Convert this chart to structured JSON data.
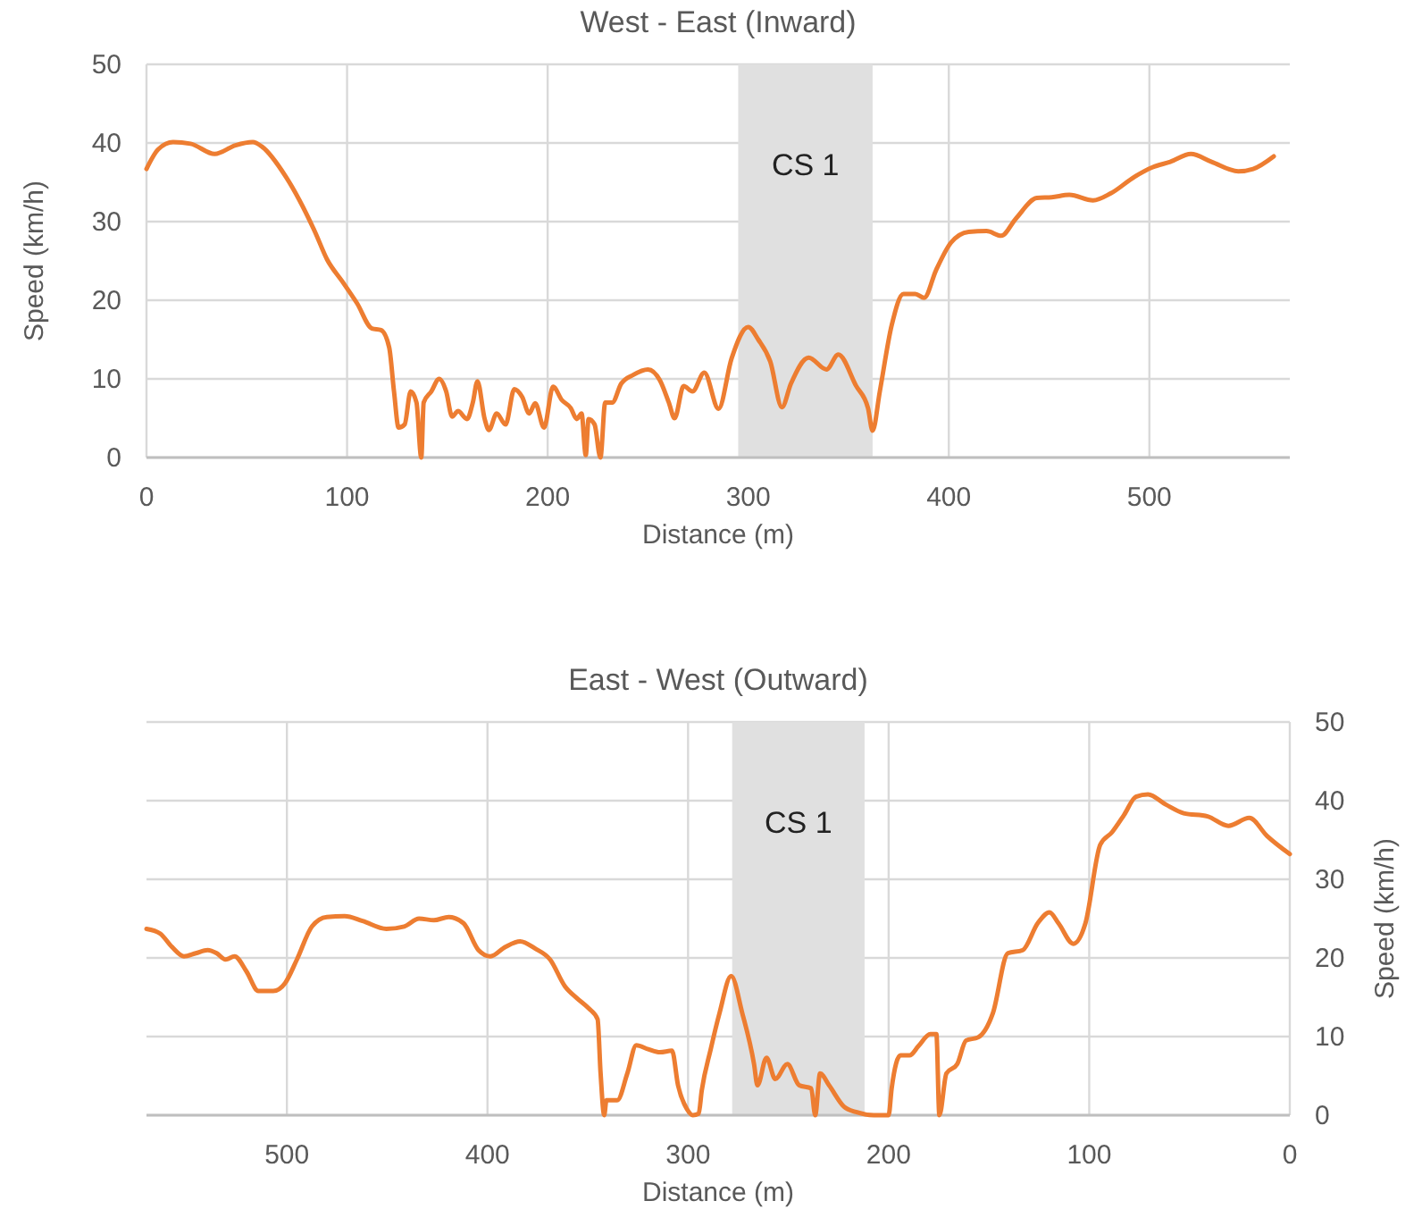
{
  "chart_data": [
    {
      "type": "line",
      "title": "West - East (Inward)",
      "xlabel": "Distance (m)",
      "ylabel": "Speed (km/h)",
      "xlim": [
        0,
        570
      ],
      "xticks": [
        0,
        100,
        200,
        300,
        400,
        500
      ],
      "ylim": [
        0,
        50
      ],
      "yticks": [
        0,
        10,
        20,
        30,
        40,
        50
      ],
      "grid": true,
      "bands": [
        {
          "axis": "x",
          "from": 295,
          "to": 362,
          "label": "CS 1",
          "color": "#e0e0e0"
        }
      ],
      "series": [
        {
          "color": "#ed7d31",
          "x": [
            0,
            5.9,
            13.3,
            22,
            34,
            44.4,
            53,
            57.7,
            69.5,
            84,
            90,
            97.6,
            105,
            112.4,
            116.9,
            121,
            123.4,
            125.7,
            128.7,
            131.7,
            134.6,
            137,
            138.2,
            142,
            145.9,
            149.4,
            152.4,
            155.3,
            159.8,
            162.7,
            165,
            168.6,
            170.7,
            174.6,
            179,
            183.4,
            187.3,
            190.8,
            193.8,
            198.2,
            202.7,
            207.1,
            211.5,
            214.5,
            216.9,
            219,
            220.4,
            223.4,
            226.3,
            228.7,
            232.2,
            236.7,
            242.6,
            250,
            256,
            260.4,
            263.3,
            267.8,
            272.2,
            278.1,
            285.2,
            291.7,
            300,
            305,
            311,
            316.8,
            321.3,
            330.1,
            339,
            344.9,
            353.8,
            359.7,
            362,
            365.6,
            371.5,
            377.4,
            383.3,
            387.7,
            393.6,
            401,
            409.9,
            418.8,
            426.1,
            433.5,
            443.9,
            451.3,
            460.1,
            471.9,
            480.8,
            492.6,
            501.5,
            510.4,
            520.7,
            531,
            544.3,
            551.7,
            562
          ],
          "values": [
            36.7,
            39.2,
            40.1,
            39.9,
            38.6,
            39.7,
            40.1,
            39.5,
            35.7,
            28.7,
            25.2,
            22.4,
            19.6,
            16.4,
            16.2,
            14,
            8.4,
            3.8,
            4.2,
            8.4,
            7,
            0,
            7,
            8.4,
            10,
            8.4,
            5.2,
            5.9,
            4.9,
            7,
            9.7,
            4.9,
            3.5,
            5.6,
            4.2,
            8.7,
            7.7,
            5.6,
            6.9,
            3.8,
            9,
            7.3,
            6.3,
            4.9,
            5.6,
            0.3,
            4.9,
            4.2,
            0,
            7,
            7,
            9.4,
            10.5,
            11.2,
            9.8,
            7,
            5,
            9.1,
            8.4,
            10.8,
            6.2,
            12.6,
            16.6,
            15,
            12.2,
            6.4,
            9.4,
            12.7,
            11.2,
            13.1,
            9.1,
            6.3,
            3.4,
            8.4,
            16.8,
            20.8,
            20.8,
            20.3,
            23.8,
            27.3,
            28.7,
            28.8,
            28.2,
            30.4,
            33,
            33.1,
            33.4,
            32.7,
            33.6,
            35.7,
            36.9,
            37.6,
            38.6,
            37.6,
            36.4,
            36.7,
            38.3
          ]
        }
      ]
    },
    {
      "type": "line",
      "title": "East - West (Outward)",
      "xlabel": "Distance (m)",
      "y2label": "Speed (km/h)",
      "xlim": [
        570,
        0
      ],
      "xticks": [
        500,
        400,
        300,
        200,
        100,
        0
      ],
      "y2lim": [
        0,
        50
      ],
      "y2ticks": [
        0,
        10,
        20,
        30,
        40,
        50
      ],
      "grid": true,
      "bands": [
        {
          "axis": "x",
          "from": 212,
          "to": 278,
          "label": "CS 1",
          "color": "#e0e0e0"
        }
      ],
      "series": [
        {
          "color": "#ed7d31",
          "axis": "y2",
          "x": [
            570,
            563.2,
            557.3,
            551.3,
            545.4,
            539.5,
            535,
            530.6,
            526.1,
            520.2,
            514.2,
            506.8,
            500.9,
            495,
            487.5,
            480.1,
            471.2,
            462.3,
            450.4,
            441.5,
            434.1,
            426.7,
            419.3,
            411.9,
            404.5,
            398.5,
            391.1,
            383.7,
            376.3,
            368.8,
            361.4,
            355.5,
            349.6,
            345.1,
            343.6,
            341.8,
            340.7,
            335.3,
            330.3,
            325.8,
            319.9,
            314,
            308,
            305,
            300.6,
            297.6,
            294.7,
            293.2,
            288.7,
            284.3,
            278.5,
            273,
            267.1,
            265.4,
            260.9,
            256.5,
            250.5,
            244.6,
            238.6,
            236.6,
            234.2,
            229.7,
            222.3,
            216.3,
            207.4,
            200,
            198.5,
            194.1,
            189.6,
            185.1,
            179.2,
            176.2,
            174.7,
            171.2,
            165.8,
            161.4,
            155.4,
            148,
            140.6,
            133.1,
            125.7,
            119.8,
            115.3,
            107.9,
            101.9,
            94.5,
            88.6,
            82.6,
            76.7,
            70.7,
            61.8,
            52.9,
            41,
            30.6,
            20.2,
            11.3,
            0
          ],
          "values": [
            23.7,
            23.1,
            21.4,
            20.2,
            20.6,
            21,
            20.6,
            19.8,
            20.2,
            18.3,
            15.8,
            15.8,
            16.8,
            19.8,
            24,
            25.2,
            25.3,
            24.7,
            23.7,
            24,
            25,
            24.8,
            25.2,
            24.4,
            21,
            20.2,
            21.4,
            22.1,
            21.2,
            19.8,
            16.4,
            14.9,
            13.6,
            12.2,
            5.3,
            0,
            1.9,
            1.9,
            5.3,
            8.9,
            8.4,
            8,
            8.2,
            3.8,
            0.8,
            0,
            0.2,
            3.1,
            8.4,
            13,
            17.7,
            13,
            6.5,
            3.8,
            7.3,
            4.6,
            6.5,
            3.8,
            3.4,
            0,
            5.3,
            3.8,
            1.1,
            0.4,
            0,
            0,
            3.4,
            7.6,
            7.6,
            8.8,
            10.3,
            10.3,
            0,
            5.3,
            6.5,
            9.5,
            9.9,
            13,
            20.6,
            21,
            24.4,
            25.8,
            24.4,
            21.8,
            24.4,
            34.4,
            36,
            38.2,
            40.5,
            40.8,
            39.5,
            38.4,
            38,
            36.8,
            37.8,
            35.5,
            33.2
          ]
        }
      ]
    }
  ]
}
